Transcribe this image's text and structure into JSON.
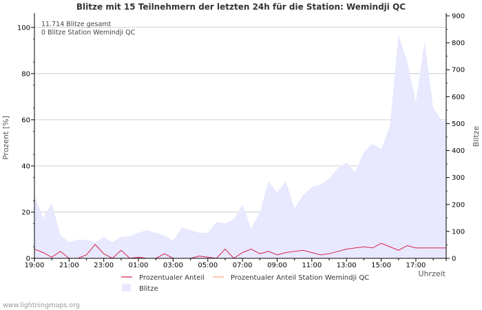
{
  "chart_data": {
    "type": "area",
    "title": "Blitze mit 15 Teilnehmern der letzten 24h für die Station: Wemindji QC",
    "xlabel": "Uhrzeit",
    "ylabel_left": "Prozent   [%]",
    "ylabel_right": "Blitze",
    "ylim_left": [
      0,
      105
    ],
    "ylim_right": [
      0,
      900
    ],
    "yticks_left": [
      "0",
      "20",
      "40",
      "60",
      "80",
      "100"
    ],
    "yticks_right": [
      "0",
      "100",
      "200",
      "300",
      "400",
      "500",
      "600",
      "700",
      "800",
      "900"
    ],
    "x_tick_labels": [
      "19:00",
      "21:00",
      "23:00",
      "01:00",
      "03:00",
      "05:00",
      "07:00",
      "09:00",
      "11:00",
      "13:00",
      "15:00",
      "17:00"
    ],
    "x_range_hours": [
      0,
      23.75
    ],
    "annotations": [
      "11.714 Blitze gesamt",
      "0 Blitze Station Wemindji QC"
    ],
    "legend": [
      "Prozentualer Anteil",
      "Prozentualer Anteil Station Wemindji QC",
      "Blitze"
    ],
    "colors": {
      "percent": "#d62248",
      "station": "#ff9f80",
      "blitze_fill": "#e8e8ff",
      "grid": "#c0c0c0",
      "axis": "#000000"
    },
    "series": [
      {
        "name": "Blitze",
        "axis": "right",
        "x": [
          0,
          0.5,
          1,
          1.5,
          2,
          2.5,
          3,
          3.5,
          4,
          4.5,
          5,
          5.5,
          6,
          6.5,
          7,
          7.5,
          8,
          8.5,
          9,
          9.5,
          10,
          10.5,
          11,
          11.5,
          12,
          12.5,
          13,
          13.5,
          14,
          14.5,
          15,
          15.5,
          16,
          16.5,
          17,
          17.5,
          18,
          18.5,
          19,
          19.5,
          20,
          20.5,
          21,
          21.5,
          22,
          22.5,
          23,
          23.5,
          23.75
        ],
        "values": [
          235,
          150,
          205,
          85,
          60,
          70,
          68,
          60,
          78,
          60,
          80,
          82,
          95,
          105,
          95,
          85,
          65,
          115,
          105,
          95,
          95,
          135,
          130,
          145,
          200,
          110,
          170,
          285,
          245,
          285,
          185,
          235,
          265,
          275,
          295,
          335,
          355,
          320,
          395,
          425,
          405,
          490,
          830,
          730,
          580,
          805,
          560,
          510,
          510
        ]
      },
      {
        "name": "Prozentualer Anteil",
        "axis": "left",
        "x": [
          0,
          0.5,
          1,
          1.5,
          2,
          2.5,
          3,
          3.5,
          4,
          4.5,
          5,
          5.5,
          6,
          6.5,
          7,
          7.5,
          8,
          8.5,
          9,
          9.5,
          10,
          10.5,
          11,
          11.5,
          12,
          12.5,
          13,
          13.5,
          14,
          14.5,
          15,
          15.5,
          16,
          16.5,
          17,
          17.5,
          18,
          18.5,
          19,
          19.5,
          20,
          20.5,
          21,
          21.5,
          22,
          22.5,
          23,
          23.5,
          23.75
        ],
        "values": [
          4,
          2.5,
          0.5,
          3,
          0,
          0,
          1.5,
          6,
          2,
          0,
          3.5,
          0,
          0.5,
          0,
          0,
          2,
          0,
          0,
          0,
          1,
          0.5,
          0,
          4,
          0,
          2.5,
          4,
          2,
          3,
          1.5,
          2.5,
          3,
          3.5,
          2.5,
          1.5,
          2,
          3,
          4,
          4.5,
          5,
          4.5,
          6.5,
          5,
          3.5,
          5.5,
          4.5,
          4.5,
          4.5,
          4.5,
          4.5
        ]
      },
      {
        "name": "Prozentualer Anteil Station Wemindji QC",
        "axis": "left",
        "x": [
          0,
          23.75
        ],
        "values": [
          0,
          0
        ]
      }
    ]
  },
  "footer": {
    "credit": "www.lightningmaps.org"
  }
}
